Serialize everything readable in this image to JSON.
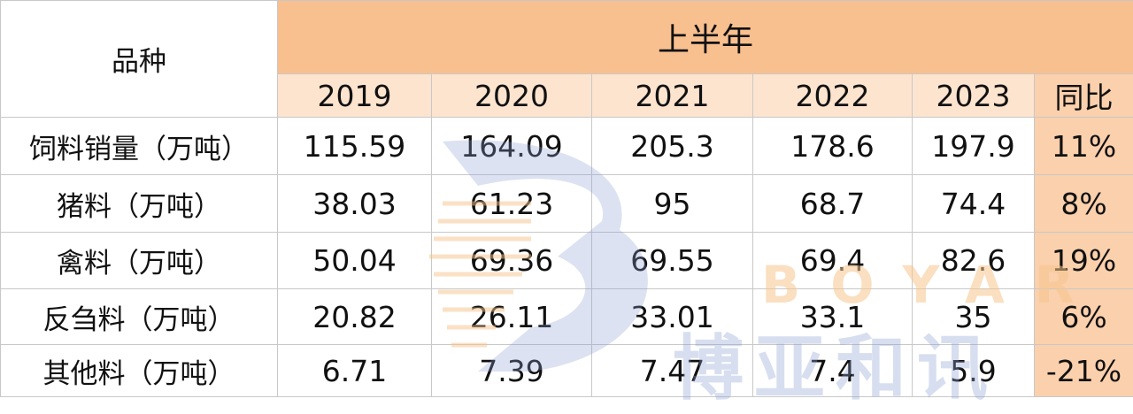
{
  "table": {
    "header": {
      "label": "品种",
      "group": "上半年"
    },
    "columns": [
      "2019",
      "2020",
      "2021",
      "2022",
      "2023",
      "同比"
    ],
    "rows": [
      [
        "饲料销量（万吨）",
        "115.59",
        "164.09",
        "205.3",
        "178.6",
        "197.9",
        "11%"
      ],
      [
        "猪料（万吨）",
        "38.03",
        "61.23",
        "95",
        "68.7",
        "74.4",
        "8%"
      ],
      [
        "禽料（万吨）",
        "50.04",
        "69.36",
        "69.55",
        "69.4",
        "82.6",
        "19%"
      ],
      [
        "反刍料（万吨）",
        "20.82",
        "26.11",
        "33.01",
        "33.1",
        "35",
        "6%"
      ],
      [
        "其他料（万吨）",
        "6.71",
        "7.39",
        "7.47",
        "7.4",
        "5.9",
        "-21%"
      ]
    ]
  },
  "watermark": {
    "latin": "BOYAR",
    "chinese": "博亚和讯"
  }
}
